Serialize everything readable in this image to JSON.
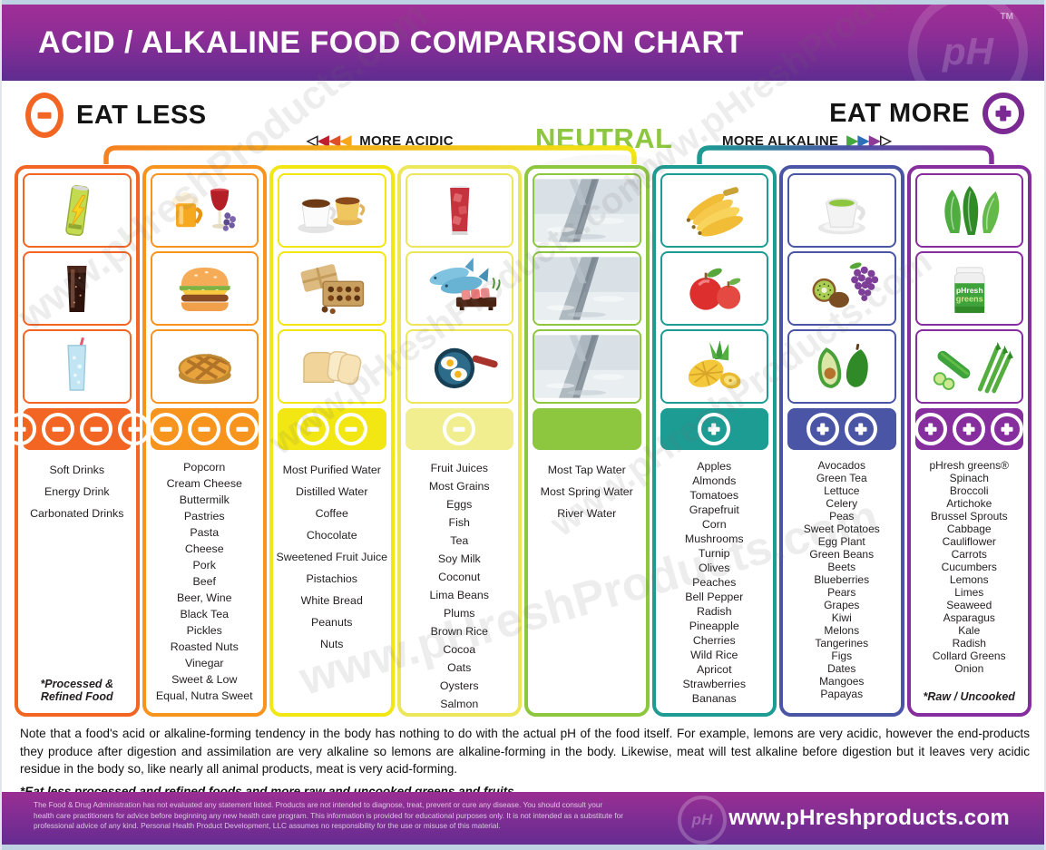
{
  "header": {
    "title": "ACID / ALKALINE FOOD COMPARISON CHART",
    "logo_text": "pH",
    "trademark": "TM"
  },
  "legend": {
    "eat_less": "EAT LESS",
    "eat_more": "EAT MORE",
    "more_acidic": "MORE ACIDIC",
    "neutral": "NEUTRAL",
    "more_alkaline": "MORE ALKALINE",
    "eat_less_color": "#F26522",
    "eat_more_color": "#7B2A94",
    "neutral_color": "#8DC63F",
    "acid_arrow_colors": [
      "outline",
      "#BE1E2D",
      "#E04E27",
      "#F6A71B"
    ],
    "alkaline_arrow_colors": [
      "#44A93F",
      "#2E70B8",
      "#8E3A97",
      "outline"
    ]
  },
  "watermark": "www.pHreshProducts.com",
  "chart_data": {
    "type": "table",
    "title": "ACID / ALKALINE FOOD COMPARISON CHART",
    "columns": [
      {
        "id": "most-acidic",
        "acidity_level": -4,
        "color": "#F26522",
        "badge_symbol": "minus",
        "badge_count": 4,
        "icons": [
          {
            "name": "energy-drink"
          },
          {
            "name": "cola-glass"
          },
          {
            "name": "soda-glass"
          }
        ],
        "items": [
          "Soft Drinks",
          "Energy Drink",
          "Carbonated Drinks"
        ],
        "footnote": "*Processed & Refined Food"
      },
      {
        "id": "very-acidic",
        "acidity_level": -3,
        "color": "#F7941E",
        "badge_symbol": "minus",
        "badge_count": 3,
        "icons": [
          {
            "name": "beer-wine"
          },
          {
            "name": "hamburger"
          },
          {
            "name": "pie"
          }
        ],
        "items": [
          "Popcorn",
          "Cream Cheese",
          "Buttermilk",
          "Pastries",
          "Pasta",
          "Cheese",
          "Pork",
          "Beef",
          "Beer, Wine",
          "Black Tea",
          "Pickles",
          "Roasted Nuts",
          "Vinegar",
          "Sweet & Low",
          "Equal, Nutra Sweet"
        ]
      },
      {
        "id": "acidic",
        "acidity_level": -2,
        "color": "#F2E713",
        "badge_symbol": "minus",
        "badge_count": 2,
        "icons": [
          {
            "name": "coffee-cups"
          },
          {
            "name": "chocolates"
          },
          {
            "name": "bread"
          }
        ],
        "items": [
          "Most Purified Water",
          "Distilled Water",
          "Coffee",
          "Chocolate",
          "Sweetened Fruit Juice",
          "Pistachios",
          "White Bread",
          "Peanuts",
          "Nuts"
        ]
      },
      {
        "id": "mildly-acidic",
        "acidity_level": -1,
        "color": "#ECE65B",
        "badge_color": "#F0EE8E",
        "badge_symbol": "minus",
        "badge_count": 1,
        "icons": [
          {
            "name": "juice-glass"
          },
          {
            "name": "fish"
          },
          {
            "name": "fried-eggs"
          }
        ],
        "items": [
          "Fruit Juices",
          "Most Grains",
          "Eggs",
          "Fish",
          "Tea",
          "Soy Milk",
          "Coconut",
          "Lima Beans",
          "Plums",
          "Brown Rice",
          "Cocoa",
          "Oats",
          "Oysters",
          "Salmon"
        ]
      },
      {
        "id": "neutral",
        "acidity_level": 0,
        "color": "#8DC63F",
        "badge_symbol": "none",
        "badge_count": 0,
        "icons": [
          {
            "name": "water-photo"
          },
          {
            "name": "water-photo"
          },
          {
            "name": "water-photo"
          }
        ],
        "items": [
          "Most Tap Water",
          "Most Spring Water",
          "River Water"
        ]
      },
      {
        "id": "mildly-alkaline",
        "acidity_level": 1,
        "color": "#1D9C94",
        "badge_symbol": "plus",
        "badge_count": 1,
        "icons": [
          {
            "name": "bananas"
          },
          {
            "name": "apples"
          },
          {
            "name": "pineapple"
          }
        ],
        "items": [
          "Apples",
          "Almonds",
          "Tomatoes",
          "Grapefruit",
          "Corn",
          "Mushrooms",
          "Turnip",
          "Olives",
          "Peaches",
          "Bell Pepper",
          "Radish",
          "Pineapple",
          "Cherries",
          "Wild Rice",
          "Apricot",
          "Strawberries",
          "Bananas"
        ]
      },
      {
        "id": "alkaline",
        "acidity_level": 2,
        "color": "#4A55A5",
        "badge_symbol": "plus",
        "badge_count": 2,
        "icons": [
          {
            "name": "green-tea"
          },
          {
            "name": "kiwi-grapes"
          },
          {
            "name": "avocado"
          }
        ],
        "items": [
          "Avocados",
          "Green Tea",
          "Lettuce",
          "Celery",
          "Peas",
          "Sweet Potatoes",
          "Egg Plant",
          "Green Beans",
          "Beets",
          "Blueberries",
          "Pears",
          "Grapes",
          "Kiwi",
          "Melons",
          "Tangerines",
          "Figs",
          "Dates",
          "Mangoes",
          "Papayas"
        ]
      },
      {
        "id": "most-alkaline",
        "acidity_level": 3,
        "color": "#872E9E",
        "badge_symbol": "plus",
        "badge_count": 3,
        "icons": [
          {
            "name": "leafy-greens"
          },
          {
            "name": "phresh-greens-jar",
            "label": "pHresh greens"
          },
          {
            "name": "cucumber-asparagus"
          }
        ],
        "items": [
          "pHresh greens®",
          "Spinach",
          "Broccoli",
          "Artichoke",
          "Brussel Sprouts",
          "Cabbage",
          "Cauliflower",
          "Carrots",
          "Cucumbers",
          "Lemons",
          "Limes",
          "Seaweed",
          "Asparagus",
          "Kale",
          "Radish",
          "Collard Greens",
          "Onion"
        ],
        "footnote": "*Raw / Uncooked"
      }
    ]
  },
  "note": {
    "paragraph": "Note that a food's acid or alkaline-forming tendency in the body has nothing to do with the actual pH of the food itself. For example, lemons are very acidic, however the end-products they produce after digestion and assimilation are very alkaline so lemons are alkaline-forming in the body. Likewise, meat will test alkaline before digestion but it leaves very acidic residue in the body so, like nearly all animal products, meat is very acid-forming.",
    "emphasis": "*Eat less processed and refined foods and more raw and uncooked greens and fruits."
  },
  "footer": {
    "disclaimer": "The Food & Drug Administration has not evaluated any statement listed. Products are not intended to diagnose, treat, prevent or cure any disease. You should consult your health care practitioners for advice before beginning any new health care program. This information is provided for educational purposes only. It is not intended as a substitute for professional advice of any kind. Personal Health Product Development, LLC assumes no responsibility for the use or misuse of this material.",
    "website": "www.pHreshproducts.com"
  }
}
